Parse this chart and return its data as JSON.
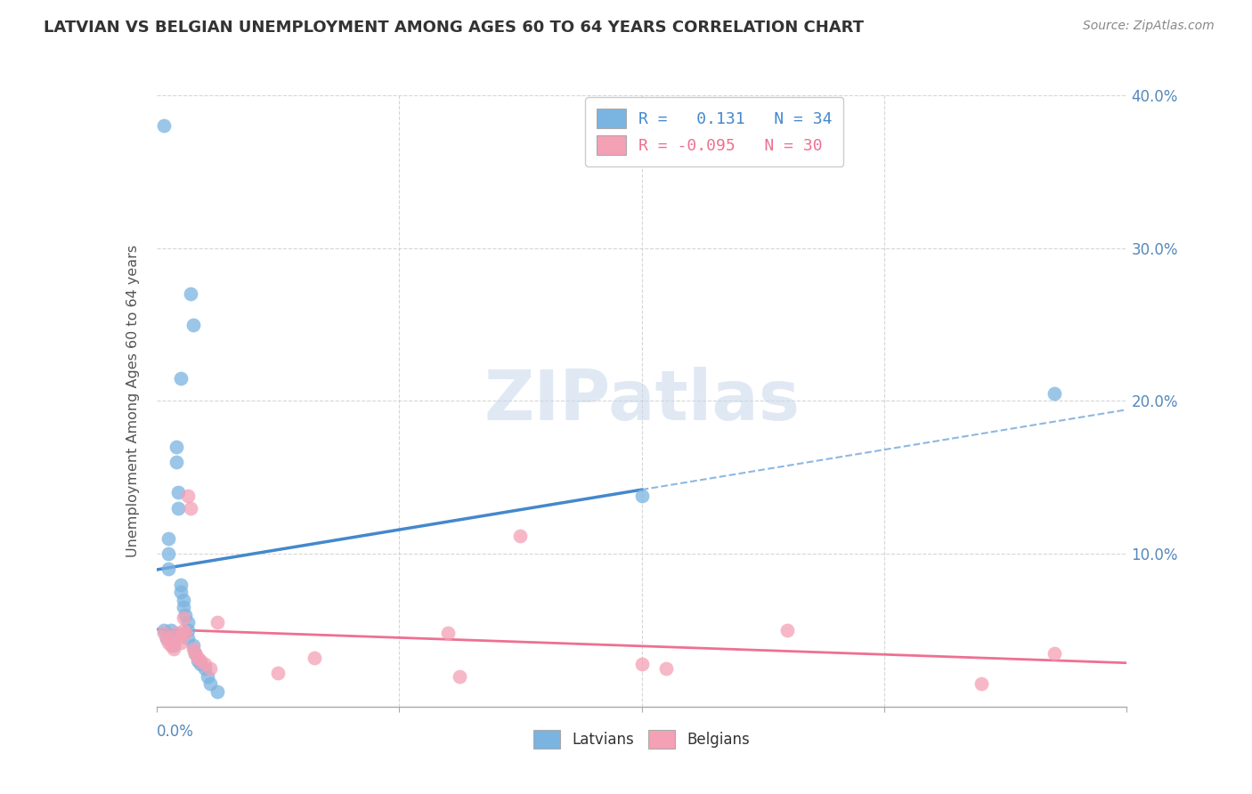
{
  "title": "LATVIAN VS BELGIAN UNEMPLOYMENT AMONG AGES 60 TO 64 YEARS CORRELATION CHART",
  "source": "Source: ZipAtlas.com",
  "ylabel": "Unemployment Among Ages 60 to 64 years",
  "xlabel": "",
  "xlim": [
    0.0,
    0.4
  ],
  "ylim": [
    0.0,
    0.4
  ],
  "xticks": [
    0.0,
    0.1,
    0.2,
    0.3,
    0.4
  ],
  "yticks": [
    0.0,
    0.1,
    0.2,
    0.3,
    0.4
  ],
  "right_ytick_labels": [
    "",
    "10.0%",
    "20.0%",
    "30.0%",
    "40.0%"
  ],
  "x_edge_labels": [
    "0.0%",
    "40.0%"
  ],
  "latvian_color": "#7ab4e0",
  "belgian_color": "#f4a0b5",
  "latvian_line_color": "#4488cc",
  "belgian_line_color": "#ee7090",
  "latvian_R": 0.131,
  "latvian_N": 34,
  "belgian_R": -0.095,
  "belgian_N": 30,
  "watermark": "ZIPatlas",
  "legend_latvians": "Latvians",
  "legend_belgians": "Belgians",
  "solid_line_end": 0.2,
  "latvian_x": [
    0.003,
    0.003,
    0.004,
    0.005,
    0.005,
    0.005,
    0.006,
    0.007,
    0.007,
    0.008,
    0.008,
    0.009,
    0.009,
    0.01,
    0.01,
    0.01,
    0.011,
    0.011,
    0.012,
    0.013,
    0.013,
    0.013,
    0.014,
    0.015,
    0.015,
    0.016,
    0.017,
    0.018,
    0.02,
    0.021,
    0.022,
    0.025,
    0.2,
    0.37
  ],
  "latvian_y": [
    0.38,
    0.05,
    0.045,
    0.11,
    0.1,
    0.09,
    0.05,
    0.045,
    0.04,
    0.17,
    0.16,
    0.14,
    0.13,
    0.215,
    0.08,
    0.075,
    0.07,
    0.065,
    0.06,
    0.055,
    0.05,
    0.045,
    0.27,
    0.25,
    0.04,
    0.035,
    0.03,
    0.028,
    0.025,
    0.02,
    0.015,
    0.01,
    0.138,
    0.205
  ],
  "belgian_x": [
    0.003,
    0.004,
    0.005,
    0.006,
    0.007,
    0.008,
    0.009,
    0.01,
    0.011,
    0.011,
    0.012,
    0.013,
    0.014,
    0.015,
    0.016,
    0.017,
    0.018,
    0.02,
    0.022,
    0.025,
    0.05,
    0.065,
    0.12,
    0.125,
    0.15,
    0.2,
    0.21,
    0.26,
    0.34,
    0.37
  ],
  "belgian_y": [
    0.048,
    0.045,
    0.042,
    0.04,
    0.038,
    0.048,
    0.045,
    0.042,
    0.058,
    0.05,
    0.048,
    0.138,
    0.13,
    0.038,
    0.035,
    0.032,
    0.03,
    0.028,
    0.025,
    0.055,
    0.022,
    0.032,
    0.048,
    0.02,
    0.112,
    0.028,
    0.025,
    0.05,
    0.015,
    0.035
  ]
}
